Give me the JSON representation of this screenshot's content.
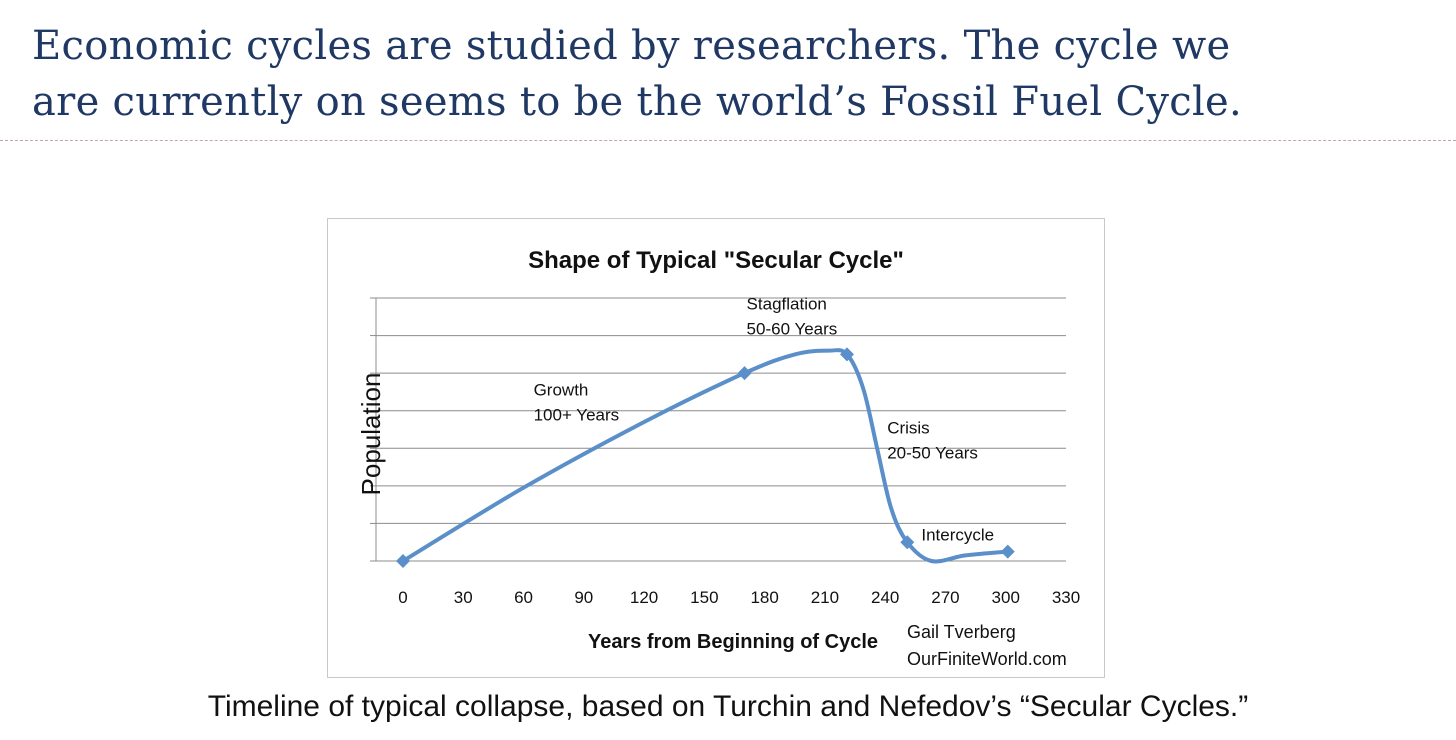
{
  "slide": {
    "title_line1": "Economic cycles are studied by researchers. The cycle we",
    "title_line2": "are currently on seems to be the world’s Fossil Fuel Cycle.",
    "caption": "Timeline of typical collapse, based on Turchin and Nefedov’s “Secular Cycles.”",
    "title_color": "#1f3864"
  },
  "chart_data": {
    "type": "line",
    "title": "Shape of Typical \"Secular Cycle\"",
    "xlabel": "Years from Beginning of Cycle",
    "ylabel": "Population",
    "xlim": [
      0,
      330
    ],
    "x_ticks": [
      "0",
      "30",
      "60",
      "90",
      "120",
      "150",
      "180",
      "210",
      "240",
      "270",
      "300",
      "330"
    ],
    "ylim": [
      0,
      7
    ],
    "y_gridlines": 7,
    "y_tick_labels_shown": false,
    "grid": true,
    "series_color": "#5b8fc9",
    "series": [
      {
        "markers": [
          {
            "x": 0,
            "y": 0
          },
          {
            "x": 170,
            "y": 5.0
          },
          {
            "x": 221,
            "y": 5.5
          },
          {
            "x": 251,
            "y": 0.5
          },
          {
            "x": 301,
            "y": 0.25
          }
        ],
        "curve": [
          {
            "x": 0,
            "y": 0
          },
          {
            "x": 60,
            "y": 1.95
          },
          {
            "x": 120,
            "y": 3.7
          },
          {
            "x": 170,
            "y": 5.0
          },
          {
            "x": 195,
            "y": 5.5
          },
          {
            "x": 212,
            "y": 5.6
          },
          {
            "x": 221,
            "y": 5.5
          },
          {
            "x": 229,
            "y": 4.6
          },
          {
            "x": 236,
            "y": 3.0
          },
          {
            "x": 243,
            "y": 1.4
          },
          {
            "x": 251,
            "y": 0.5
          },
          {
            "x": 263,
            "y": 0.0
          },
          {
            "x": 280,
            "y": 0.15
          },
          {
            "x": 301,
            "y": 0.25
          }
        ]
      }
    ],
    "annotations": [
      {
        "line1": "Growth",
        "line2": "100+ Years",
        "x": 65,
        "y": 4.4
      },
      {
        "line1": "Stagflation",
        "line2": "50-60 Years",
        "x": 171,
        "y": 6.7
      },
      {
        "line1": "Crisis",
        "line2": "20-50 Years",
        "x": 241,
        "y": 3.4
      },
      {
        "line1": "Intercycle",
        "line2": "",
        "x": 258,
        "y": 0.55
      }
    ],
    "credit_line1": "Gail Tverberg",
    "credit_line2": "OurFiniteWorld.com"
  }
}
